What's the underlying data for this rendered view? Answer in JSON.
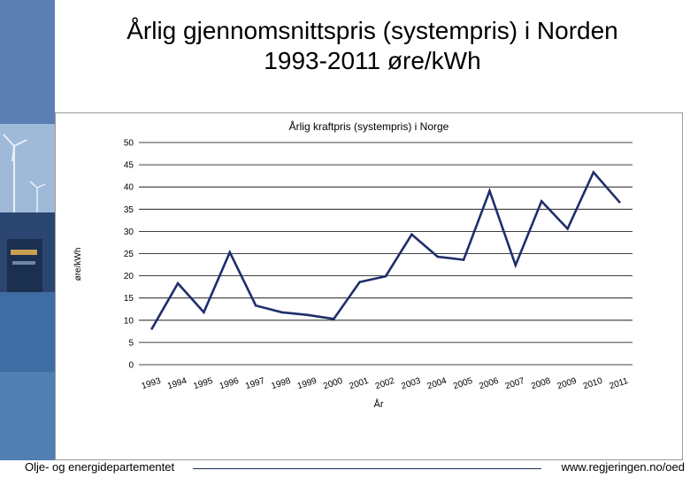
{
  "slide": {
    "title": "Årlig gjennomsnittspris (systempris) i Norden\n1993-2011 øre/kWh",
    "footer_left": "Olje- og energidepartementet",
    "footer_right": "www.regjeringen.no/oed"
  },
  "chart_data": {
    "type": "line",
    "title": "Årlig kraftpris (systempris) i Norge",
    "xlabel": "År",
    "ylabel": "øre/kWh",
    "ylim": [
      0,
      50
    ],
    "yticks": [
      "0",
      "5",
      "10",
      "15",
      "20",
      "25",
      "30",
      "35",
      "40",
      "45",
      "50"
    ],
    "grid": true,
    "categories": [
      "1993",
      "1994",
      "1995",
      "1996",
      "1997",
      "1998",
      "1999",
      "2000",
      "2001",
      "2002",
      "2003",
      "2004",
      "2005",
      "2006",
      "2007",
      "2008",
      "2009",
      "2010",
      "2011"
    ],
    "series": [
      {
        "values": [
          8.1,
          18.3,
          11.8,
          25.3,
          13.3,
          11.8,
          11.2,
          10.3,
          18.6,
          19.9,
          29.3,
          24.3,
          23.6,
          39.1,
          22.4,
          36.8,
          30.6,
          43.3,
          36.6
        ]
      }
    ],
    "colors": {
      "line": "#1f2e6b",
      "grid": "#000000"
    }
  }
}
